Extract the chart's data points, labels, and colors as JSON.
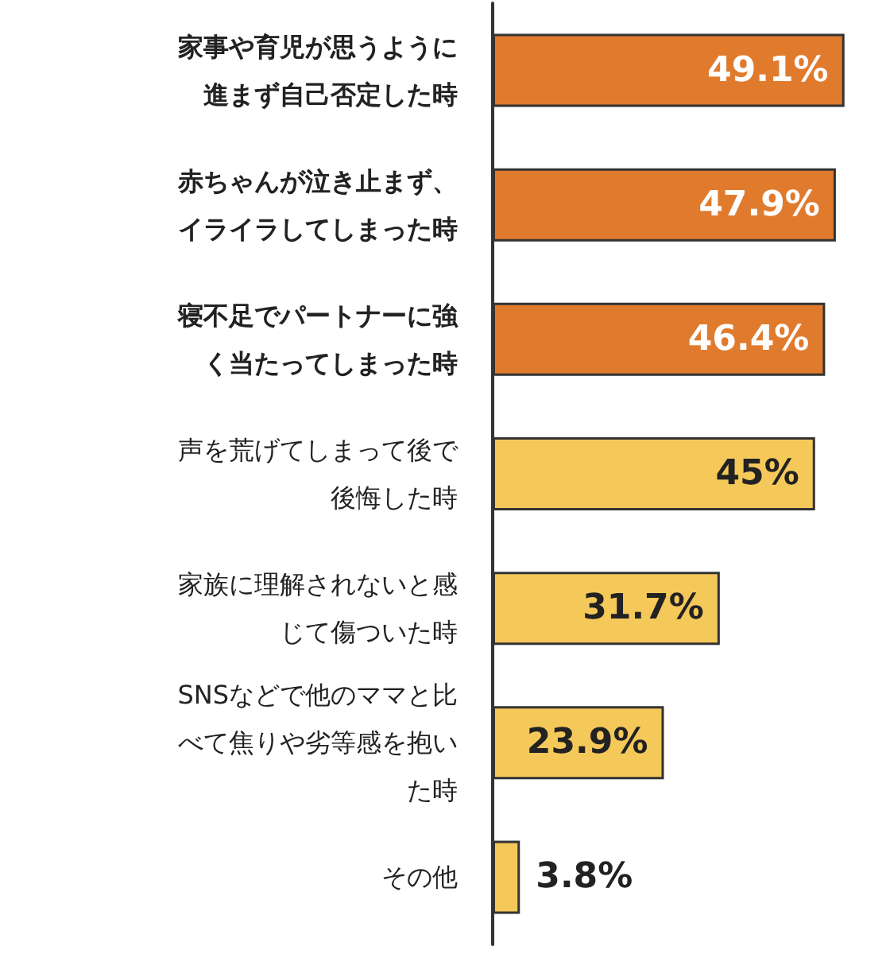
{
  "chart_data": {
    "type": "bar",
    "orientation": "horizontal",
    "categories": [
      "家事や育児が思うように進まず自己否定した時",
      "赤ちゃんが泣き止まず、イライラしてしまった時",
      "寝不足でパートナーに強く当たってしまった時",
      "声を荒げてしまって後で後悔した時",
      "家族に理解されないと感じて傷ついた時",
      "SNSなどで他のママと比べて焦りや劣等感を抱いた時",
      "その他"
    ],
    "values": [
      49.1,
      47.9,
      46.4,
      45,
      31.7,
      23.9,
      3.8
    ],
    "value_labels": [
      "49.1%",
      "47.9%",
      "46.4%",
      "45%",
      "31.7%",
      "23.9%",
      "3.8%"
    ],
    "colors": [
      "#e07b2e",
      "#e07b2e",
      "#e07b2e",
      "#f5c85a",
      "#f5c85a",
      "#f5c85a",
      "#f5c85a"
    ],
    "grid": false,
    "tick_labels": "y"
  }
}
